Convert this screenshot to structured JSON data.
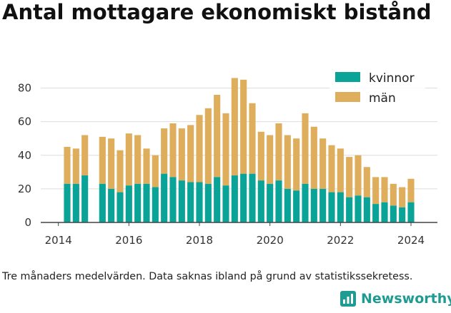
{
  "title": "Antal mottagare ekonomiskt bistånd",
  "caption": "Tre månaders medelvärden. Data saknas ibland på grund av statistikssekretess.",
  "brand": {
    "name": "Newsworthy"
  },
  "colors": {
    "kvinnor": "#09a497",
    "man": "#dfae5c",
    "grid": "#dddddd",
    "axis": "#444444",
    "brand": "#1f9c91"
  },
  "chart_data": {
    "type": "bar",
    "stacked": true,
    "x_ticks": [
      "2014",
      "2016",
      "2018",
      "2020",
      "2022",
      "2024"
    ],
    "y_ticks": [
      "0",
      "20",
      "40",
      "60",
      "80"
    ],
    "ylim": [
      0,
      90
    ],
    "xlim": [
      2013.5,
      2024.75
    ],
    "grid": true,
    "legend_position": "top-right",
    "x": [
      2014.25,
      2014.5,
      2014.75,
      2015.25,
      2015.5,
      2015.75,
      2016.0,
      2016.25,
      2016.5,
      2016.75,
      2017.0,
      2017.25,
      2017.5,
      2017.75,
      2018.0,
      2018.25,
      2018.5,
      2018.75,
      2019.0,
      2019.25,
      2019.5,
      2019.75,
      2020.0,
      2020.25,
      2020.5,
      2020.75,
      2021.0,
      2021.25,
      2021.5,
      2021.75,
      2022.0,
      2022.25,
      2022.5,
      2022.75,
      2023.0,
      2023.25,
      2023.5,
      2023.75,
      2024.0
    ],
    "series": [
      {
        "name": "kvinnor",
        "values": [
          23,
          23,
          28,
          23,
          20,
          18,
          22,
          23,
          23,
          21,
          29,
          27,
          25,
          24,
          24,
          23,
          27,
          22,
          28,
          29,
          29,
          25,
          23,
          25,
          20,
          19,
          23,
          20,
          20,
          18,
          18,
          15,
          16,
          15,
          11,
          12,
          10,
          9,
          12
        ]
      },
      {
        "name": "män",
        "values": [
          22,
          21,
          24,
          28,
          30,
          25,
          31,
          29,
          21,
          19,
          27,
          32,
          31,
          34,
          40,
          45,
          49,
          43,
          58,
          56,
          42,
          29,
          29,
          34,
          32,
          31,
          42,
          37,
          30,
          28,
          26,
          24,
          24,
          18,
          16,
          15,
          13,
          12,
          14
        ]
      }
    ]
  }
}
